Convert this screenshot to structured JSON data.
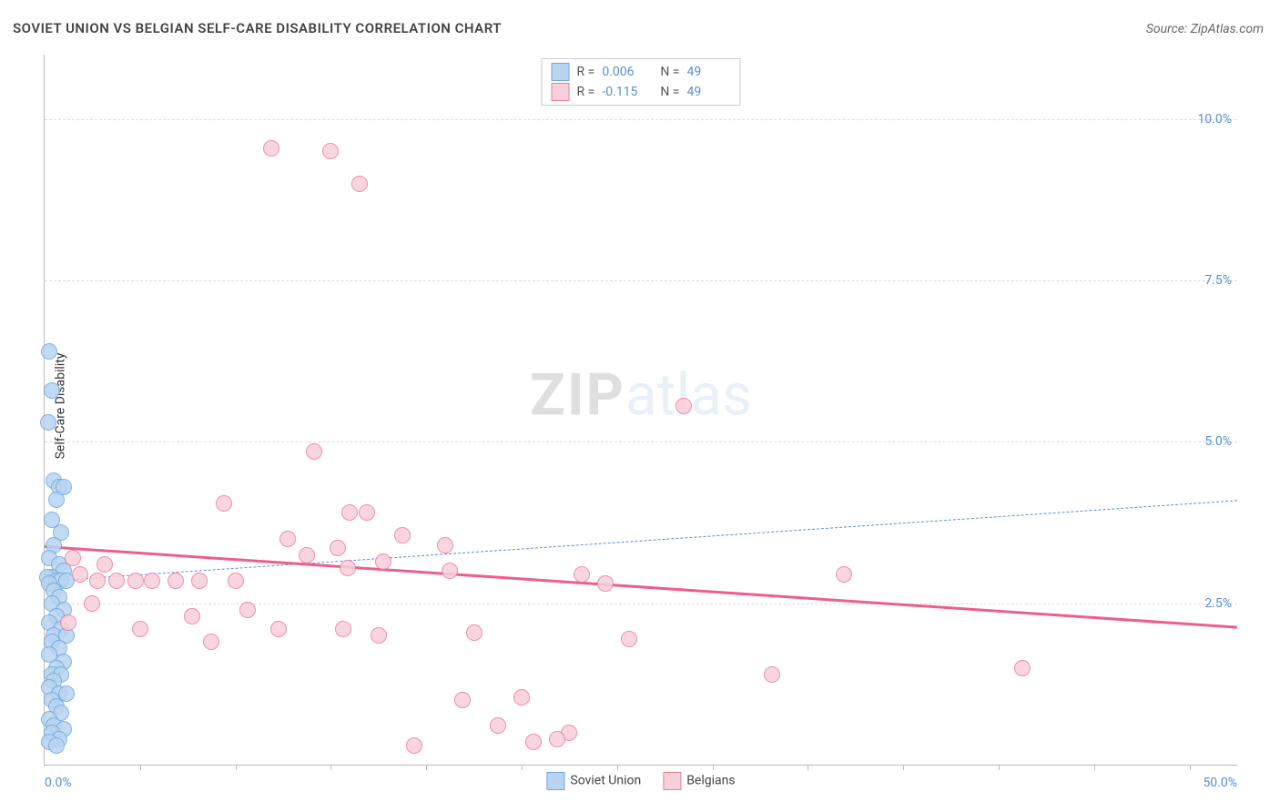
{
  "title": "SOVIET UNION VS BELGIAN SELF-CARE DISABILITY CORRELATION CHART",
  "source": "Source: ZipAtlas.com",
  "ylabel": "Self-Care Disability",
  "watermark_zip": "ZIP",
  "watermark_atlas": "atlas",
  "chart": {
    "type": "scatter",
    "xlim": [
      0,
      50
    ],
    "ylim": [
      0,
      11
    ],
    "background_color": "#ffffff",
    "grid_color": "#dddddd",
    "axis_color": "#bbbbbb",
    "label_color": "#5b8dd6",
    "point_radius": 9,
    "point_stroke_width": 1.2,
    "yticks": [
      {
        "v": 2.5,
        "label": "2.5%"
      },
      {
        "v": 5.0,
        "label": "5.0%"
      },
      {
        "v": 7.5,
        "label": "7.5%"
      },
      {
        "v": 10.0,
        "label": "10.0%"
      }
    ],
    "xticks_minor": [
      4,
      8,
      12,
      16,
      20,
      24,
      28,
      32,
      36,
      40,
      44,
      48
    ],
    "xlabels": [
      {
        "v": 0,
        "label": "0.0%"
      },
      {
        "v": 50,
        "label": "50.0%"
      }
    ],
    "series": [
      {
        "name": "Soviet Union",
        "color_fill": "#b8d4f0",
        "color_stroke": "#6fa8e0",
        "R": "0.006",
        "N": "49",
        "trend": {
          "x1": 0,
          "y1": 2.85,
          "x2": 50,
          "y2": 4.1,
          "stroke": "#5b8dd6",
          "width": 1,
          "dash": "6,5"
        },
        "points": [
          [
            0.2,
            6.4
          ],
          [
            0.3,
            5.8
          ],
          [
            0.4,
            4.4
          ],
          [
            0.6,
            4.3
          ],
          [
            0.8,
            4.3
          ],
          [
            0.5,
            4.1
          ],
          [
            0.3,
            3.8
          ],
          [
            0.7,
            3.6
          ],
          [
            0.4,
            3.4
          ],
          [
            0.2,
            3.2
          ],
          [
            0.6,
            3.1
          ],
          [
            0.8,
            3.0
          ],
          [
            0.3,
            2.9
          ],
          [
            0.1,
            2.9
          ],
          [
            0.5,
            2.85
          ],
          [
            0.7,
            2.85
          ],
          [
            0.9,
            2.85
          ],
          [
            0.2,
            2.8
          ],
          [
            0.4,
            2.7
          ],
          [
            0.6,
            2.6
          ],
          [
            0.3,
            2.5
          ],
          [
            0.8,
            2.4
          ],
          [
            0.5,
            2.3
          ],
          [
            0.2,
            2.2
          ],
          [
            0.7,
            2.1
          ],
          [
            0.4,
            2.0
          ],
          [
            0.9,
            2.0
          ],
          [
            0.3,
            1.9
          ],
          [
            0.6,
            1.8
          ],
          [
            0.2,
            1.7
          ],
          [
            0.8,
            1.6
          ],
          [
            0.5,
            1.5
          ],
          [
            0.3,
            1.4
          ],
          [
            0.7,
            1.4
          ],
          [
            0.4,
            1.3
          ],
          [
            0.2,
            1.2
          ],
          [
            0.6,
            1.1
          ],
          [
            0.9,
            1.1
          ],
          [
            0.3,
            1.0
          ],
          [
            0.5,
            0.9
          ],
          [
            0.7,
            0.8
          ],
          [
            0.2,
            0.7
          ],
          [
            0.4,
            0.6
          ],
          [
            0.8,
            0.55
          ],
          [
            0.3,
            0.5
          ],
          [
            0.6,
            0.4
          ],
          [
            0.2,
            0.35
          ],
          [
            0.5,
            0.3
          ],
          [
            0.15,
            5.3
          ]
        ]
      },
      {
        "name": "Belgians",
        "color_fill": "#f8d0da",
        "color_stroke": "#ec7ba0",
        "R": "-0.115",
        "N": "49",
        "trend": {
          "x1": 0,
          "y1": 3.4,
          "x2": 50,
          "y2": 2.15,
          "stroke": "#ec5f8a",
          "width": 3,
          "dash": ""
        },
        "points": [
          [
            9.5,
            9.55
          ],
          [
            12.0,
            9.5
          ],
          [
            13.2,
            9.0
          ],
          [
            26.8,
            5.55
          ],
          [
            11.3,
            4.85
          ],
          [
            7.5,
            4.05
          ],
          [
            12.8,
            3.9
          ],
          [
            13.5,
            3.9
          ],
          [
            15.0,
            3.55
          ],
          [
            10.2,
            3.5
          ],
          [
            16.8,
            3.4
          ],
          [
            12.3,
            3.35
          ],
          [
            11.0,
            3.25
          ],
          [
            14.2,
            3.15
          ],
          [
            12.7,
            3.05
          ],
          [
            17.0,
            3.0
          ],
          [
            22.5,
            2.95
          ],
          [
            33.5,
            2.95
          ],
          [
            1.5,
            2.95
          ],
          [
            2.2,
            2.85
          ],
          [
            3.0,
            2.85
          ],
          [
            3.8,
            2.85
          ],
          [
            4.5,
            2.85
          ],
          [
            5.5,
            2.85
          ],
          [
            6.5,
            2.85
          ],
          [
            8.0,
            2.85
          ],
          [
            1.2,
            3.2
          ],
          [
            2.5,
            3.1
          ],
          [
            23.5,
            2.8
          ],
          [
            4.0,
            2.1
          ],
          [
            6.2,
            2.3
          ],
          [
            8.5,
            2.4
          ],
          [
            9.8,
            2.1
          ],
          [
            7.0,
            1.9
          ],
          [
            12.5,
            2.1
          ],
          [
            14.0,
            2.0
          ],
          [
            18.0,
            2.05
          ],
          [
            24.5,
            1.95
          ],
          [
            41.0,
            1.5
          ],
          [
            30.5,
            1.4
          ],
          [
            17.5,
            1.0
          ],
          [
            20.0,
            1.05
          ],
          [
            22.0,
            0.5
          ],
          [
            19.0,
            0.6
          ],
          [
            15.5,
            0.3
          ],
          [
            20.5,
            0.35
          ],
          [
            21.5,
            0.4
          ],
          [
            2.0,
            2.5
          ],
          [
            1.0,
            2.2
          ]
        ]
      }
    ]
  },
  "legend_bottom": [
    {
      "label": "Soviet Union",
      "fill": "#b8d4f0",
      "stroke": "#6fa8e0"
    },
    {
      "label": "Belgians",
      "fill": "#f8d0da",
      "stroke": "#ec7ba0"
    }
  ]
}
